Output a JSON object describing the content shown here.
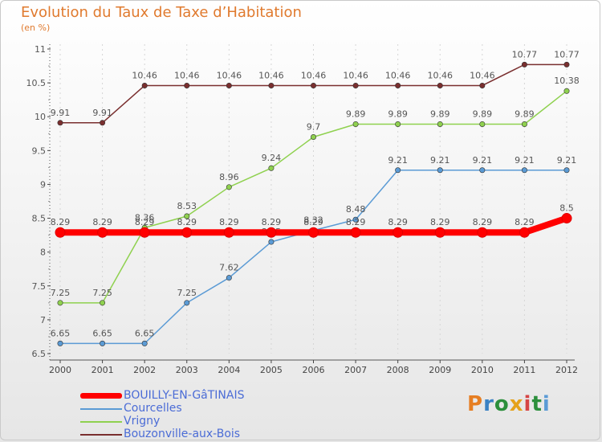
{
  "chart_data": {
    "type": "line",
    "title": "Evolution du Taux de Taxe d’Habitation",
    "subtitle": "(en %)",
    "categories": [
      "2000",
      "2001",
      "2002",
      "2003",
      "2004",
      "2005",
      "2006",
      "2007",
      "2008",
      "2009",
      "2010",
      "2011",
      "2012"
    ],
    "ylim": [
      6.5,
      11
    ],
    "yticks": [
      "6.5",
      "7",
      "7.5",
      "8",
      "8.5",
      "9",
      "9.5",
      "10",
      "10.5",
      "11"
    ],
    "legend_position": "bottom-left",
    "series": [
      {
        "name": "Bouzonville-aux-Bois",
        "color": "#7a2f2f",
        "values": [
          9.91,
          9.91,
          10.46,
          10.46,
          10.46,
          10.46,
          10.46,
          10.46,
          10.46,
          10.46,
          10.46,
          10.77,
          10.77
        ],
        "labels": [
          "9.91",
          "9.91",
          "10.46",
          "10.46",
          "10.46",
          "10.46",
          "10.46",
          "10.46",
          "10.46",
          "10.46",
          "10.46",
          "10.77",
          "10.77"
        ]
      },
      {
        "name": "Vrigny",
        "color": "#8fd14f",
        "values": [
          7.25,
          7.25,
          8.36,
          8.53,
          8.96,
          9.24,
          9.7,
          9.89,
          9.89,
          9.89,
          9.89,
          9.89,
          10.38
        ],
        "labels": [
          "7.25",
          "7.25",
          "8.36",
          "8.53",
          "8.96",
          "9.24",
          "9.7",
          "9.89",
          "9.89",
          "9.89",
          "9.89",
          "9.89",
          "10.38"
        ]
      },
      {
        "name": "Courcelles",
        "color": "#5b9bd5",
        "values": [
          6.65,
          6.65,
          6.65,
          7.25,
          7.62,
          8.15,
          8.32,
          8.48,
          9.21,
          9.21,
          9.21,
          9.21,
          9.21
        ],
        "labels": [
          "6.65",
          "6.65",
          "6.65",
          "7.25",
          "7.62",
          "8.15",
          "8.32",
          "8.48",
          "9.21",
          "9.21",
          "9.21",
          "9.21",
          "9.21"
        ]
      },
      {
        "name": "BOUILLY-EN-GâTINAIS",
        "color": "#ff0000",
        "values": [
          8.29,
          8.29,
          8.29,
          8.29,
          8.29,
          8.29,
          8.29,
          8.29,
          8.29,
          8.29,
          8.29,
          8.29,
          8.5
        ],
        "labels": [
          "8.29",
          "8.29",
          "8.29",
          "8.29",
          "8.29",
          "8.29",
          "8.29",
          "8.29",
          "8.29",
          "8.29",
          "8.29",
          "8.29",
          "8.5"
        ]
      }
    ]
  },
  "legend": [
    {
      "label": "BOUILLY-EN-GâTINAIS",
      "color": "#ff0000"
    },
    {
      "label": "Courcelles",
      "color": "#5b9bd5"
    },
    {
      "label": "Vrigny",
      "color": "#8fd14f"
    },
    {
      "label": "Bouzonville-aux-Bois",
      "color": "#7a2f2f"
    }
  ],
  "logo": {
    "letters": [
      "P",
      "r",
      "o",
      "x",
      "i",
      "t",
      "i"
    ],
    "colors": [
      "#e67e22",
      "#3b82c4",
      "#2c8f3c",
      "#e5a21a",
      "#d64545",
      "#2c8f3c",
      "#5b9bd5"
    ]
  }
}
